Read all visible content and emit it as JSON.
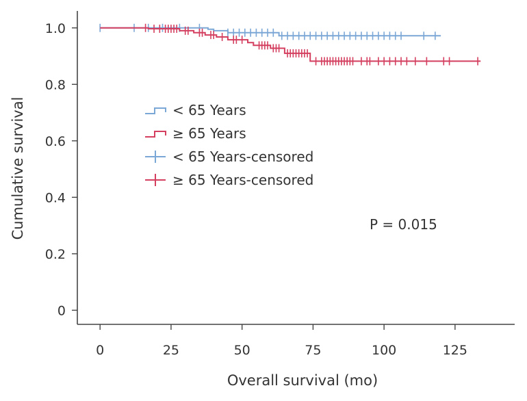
{
  "chart_data": {
    "type": "line",
    "subtype": "kaplan-meier survival curve",
    "xlabel": "Overall survival (mo)",
    "ylabel": "Cumulative survival",
    "xlim": [
      -8,
      146
    ],
    "ylim": [
      -0.05,
      1.06
    ],
    "xticks": [
      0,
      25,
      50,
      75,
      100,
      125
    ],
    "yticks": [
      0,
      0.2,
      0.4,
      0.6,
      0.8,
      1.0
    ],
    "xtick_labels": [
      "0",
      "25",
      "50",
      "75",
      "100",
      "125"
    ],
    "ytick_labels": [
      "0",
      "0.2",
      "0.4",
      "0.6",
      "0.8",
      "1.0"
    ],
    "grid": false,
    "legend_position": "center-left",
    "annotation": "P = 0.015",
    "series": [
      {
        "name": "< 65 Years",
        "color": "#7ba7d6",
        "step": [
          [
            0,
            1.0
          ],
          [
            38,
            1.0
          ],
          [
            38,
            0.995
          ],
          [
            40,
            0.995
          ],
          [
            40,
            0.99
          ],
          [
            45,
            0.99
          ],
          [
            45,
            0.983
          ],
          [
            63,
            0.983
          ],
          [
            63,
            0.972
          ],
          [
            120,
            0.972
          ]
        ],
        "censored": [
          0,
          12,
          17,
          22,
          28,
          35,
          45,
          47,
          49,
          51,
          53,
          55,
          57,
          59,
          61,
          64,
          66,
          68,
          70,
          72,
          74,
          76,
          78,
          80,
          82,
          84,
          86,
          88,
          90,
          92,
          94,
          96,
          98,
          100,
          102,
          104,
          106,
          114,
          118
        ]
      },
      {
        "name": "≥ 65 Years",
        "color": "#d43f5f",
        "step": [
          [
            0,
            1.0
          ],
          [
            17,
            1.0
          ],
          [
            17,
            0.997
          ],
          [
            28,
            0.997
          ],
          [
            28,
            0.99
          ],
          [
            33,
            0.99
          ],
          [
            33,
            0.983
          ],
          [
            37,
            0.983
          ],
          [
            37,
            0.975
          ],
          [
            41,
            0.975
          ],
          [
            41,
            0.968
          ],
          [
            45,
            0.968
          ],
          [
            45,
            0.958
          ],
          [
            52,
            0.958
          ],
          [
            52,
            0.948
          ],
          [
            54,
            0.948
          ],
          [
            54,
            0.938
          ],
          [
            60,
            0.938
          ],
          [
            60,
            0.928
          ],
          [
            65,
            0.928
          ],
          [
            65,
            0.91
          ],
          [
            74,
            0.91
          ],
          [
            74,
            0.882
          ],
          [
            134,
            0.882
          ]
        ],
        "censored": [
          16,
          19,
          21,
          23,
          24,
          25,
          26,
          27,
          30,
          31,
          35,
          36,
          39,
          40,
          43,
          47,
          48,
          50,
          56,
          57,
          58,
          59,
          61,
          62,
          63,
          66,
          67,
          68,
          69,
          70,
          71,
          72,
          73,
          76,
          78,
          79,
          80,
          81,
          82,
          83,
          84,
          85,
          86,
          87,
          88,
          89,
          92,
          94,
          95,
          98,
          100,
          102,
          104,
          106,
          108,
          111,
          115,
          121,
          123,
          133
        ]
      }
    ],
    "legend": [
      {
        "label": "< 65 Years",
        "kind": "step",
        "color": "#7ba7d6"
      },
      {
        "label": "≥ 65 Years",
        "kind": "step",
        "color": "#d43f5f"
      },
      {
        "label": "< 65 Years-censored",
        "kind": "censor",
        "color": "#7ba7d6"
      },
      {
        "label": "≥ 65 Years-censored",
        "kind": "censor",
        "color": "#d43f5f"
      }
    ]
  }
}
